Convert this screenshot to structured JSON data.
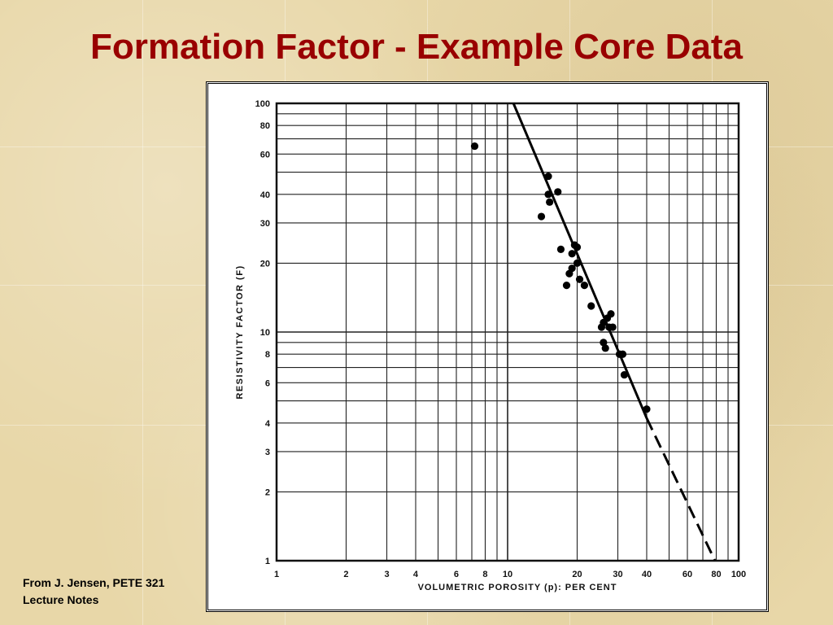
{
  "slide": {
    "title": "Formation Factor - Example Core Data",
    "credit_line1": "From J. Jensen, PETE 321",
    "credit_line2": "Lecture Notes"
  },
  "chart_data": {
    "type": "scatter",
    "xscale": "log",
    "yscale": "log",
    "xlim": [
      1,
      100
    ],
    "ylim": [
      1,
      100
    ],
    "grid": true,
    "xlabel": "VOLUMETRIC POROSITY (p): PER CENT",
    "ylabel": "RESISTIVITY FACTOR (F)",
    "x_ticks": [
      1,
      2,
      3,
      4,
      6,
      8,
      10,
      20,
      30,
      40,
      60,
      80,
      100
    ],
    "x_tick_labels": [
      "1",
      "2",
      "3",
      "4",
      "6",
      "8",
      "10",
      "20",
      "30",
      "40",
      "60",
      "80",
      "100"
    ],
    "y_ticks": [
      1,
      2,
      3,
      4,
      6,
      8,
      10,
      20,
      30,
      40,
      60,
      80,
      100
    ],
    "y_tick_labels": [
      "1",
      "2",
      "3",
      "4",
      "6",
      "8",
      "10",
      "20",
      "30",
      "40",
      "60",
      "80",
      "100"
    ],
    "points": [
      {
        "x": 7.2,
        "y": 65
      },
      {
        "x": 15,
        "y": 48
      },
      {
        "x": 15,
        "y": 40
      },
      {
        "x": 16.5,
        "y": 41
      },
      {
        "x": 15.2,
        "y": 37
      },
      {
        "x": 14,
        "y": 32
      },
      {
        "x": 17,
        "y": 23
      },
      {
        "x": 19.5,
        "y": 24
      },
      {
        "x": 19,
        "y": 22
      },
      {
        "x": 20,
        "y": 23.5
      },
      {
        "x": 20,
        "y": 20
      },
      {
        "x": 19,
        "y": 19
      },
      {
        "x": 18.5,
        "y": 18
      },
      {
        "x": 20.5,
        "y": 17
      },
      {
        "x": 21.5,
        "y": 16
      },
      {
        "x": 18,
        "y": 16
      },
      {
        "x": 23,
        "y": 13
      },
      {
        "x": 26,
        "y": 11
      },
      {
        "x": 27,
        "y": 11.5
      },
      {
        "x": 28,
        "y": 12
      },
      {
        "x": 25.5,
        "y": 10.5
      },
      {
        "x": 27.5,
        "y": 10.5
      },
      {
        "x": 28.5,
        "y": 10.5
      },
      {
        "x": 26,
        "y": 9
      },
      {
        "x": 26.5,
        "y": 8.5
      },
      {
        "x": 30.5,
        "y": 8
      },
      {
        "x": 31.5,
        "y": 8
      },
      {
        "x": 32,
        "y": 6.5
      },
      {
        "x": 40,
        "y": 4.6
      }
    ],
    "fit_line_solid": {
      "x": [
        10.6,
        40
      ],
      "y": [
        100,
        4.2
      ]
    },
    "fit_line_dashed": {
      "x": [
        40,
        79
      ],
      "y": [
        4.2,
        1
      ]
    }
  }
}
